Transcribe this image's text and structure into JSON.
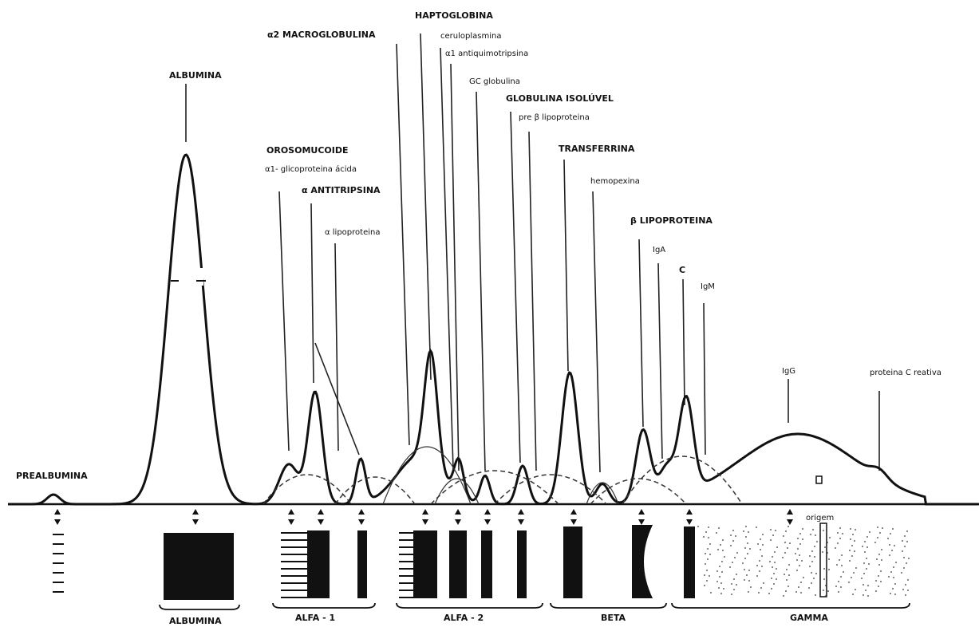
{
  "peaks": {
    "prealbumina": "PREALBUMINA",
    "albumina": "ALBUMINA",
    "macroglobulina": "α2 MACROGLOBULINA",
    "haptoglobina": "HAPTOGLOBINA",
    "ceruloplasmina": "ceruloplasmina",
    "antiquimotripsina": "α1 antiquimotripsina",
    "gc_globulina": "GC globulina",
    "globulina_insoluvel": "GLOBULINA ISOLÚVEL",
    "pre_beta": "pre β lipoproteina",
    "orosomucoide": "OROSOMUCOIDE",
    "glicoproteina": "α1- glicoproteina ácida",
    "antitripsina": "α ANTITRIPSINA",
    "alfa_lipoproteina": "α lipoproteina",
    "transferrina": "TRANSFERRINA",
    "hemopexina": "hemopexina",
    "beta_lipoproteina": "β LIPOPROTEINA",
    "iga": "IgA",
    "c": "C",
    "igm": "IgM",
    "igg": "IgG",
    "pcr": "proteina C reativa"
  },
  "origin": "origem",
  "fractions": [
    "ALBUMINA",
    "ALFA - 1",
    "ALFA - 2",
    "BETA",
    "GAMMA"
  ]
}
